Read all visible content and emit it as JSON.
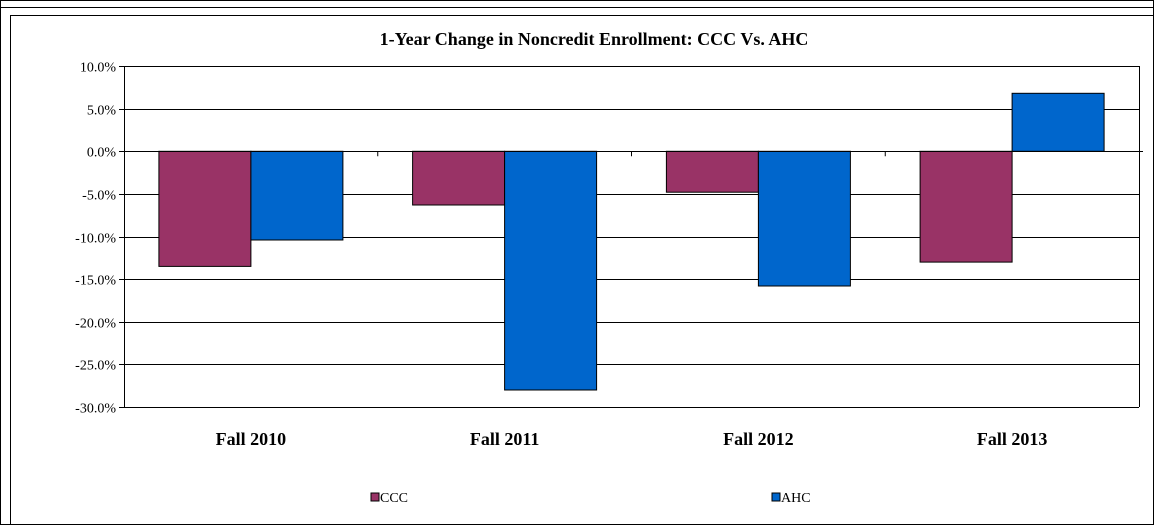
{
  "chart_data": {
    "type": "bar",
    "title": "1-Year Change in Noncredit Enrollment: CCC Vs. AHC",
    "xlabel": "",
    "ylabel": "",
    "categories": [
      "Fall 2010",
      "Fall 2011",
      "Fall 2012",
      "Fall 2013"
    ],
    "series": [
      {
        "name": "CCC",
        "values": [
          -13.5,
          -6.3,
          -4.8,
          -13.0
        ],
        "color": "#993366"
      },
      {
        "name": "AHC",
        "values": [
          -10.4,
          -28.0,
          -15.8,
          6.8
        ],
        "color": "#0066CC"
      }
    ],
    "ylim": [
      -30,
      10
    ],
    "yticks": [
      10,
      5,
      0,
      -5,
      -10,
      -15,
      -20,
      -25,
      -30
    ],
    "ytick_labels": [
      "10.0%",
      "5.0%",
      "0.0%",
      "-5.0%",
      "-10.0%",
      "-15.0%",
      "-20.0%",
      "-25.0%",
      "-30.0%"
    ],
    "grid": true,
    "legend_position": "bottom"
  }
}
